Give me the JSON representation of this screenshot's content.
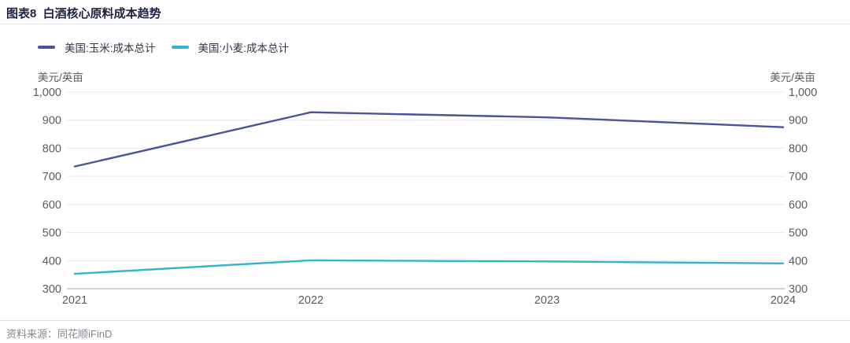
{
  "header": {
    "title": "图表8  白酒核心原料成本趋势"
  },
  "footer": {
    "source": "资料来源：同花顺iFinD"
  },
  "chart_data": {
    "type": "line",
    "title": "白酒核心原料成本趋势",
    "unit_left": "美元/英亩",
    "unit_right": "美元/英亩",
    "x": [
      "2021",
      "2022",
      "2023",
      "2024"
    ],
    "series": [
      {
        "id": "corn",
        "name": "美国:玉米:成本总计",
        "color": "#4a5299",
        "values": [
          735,
          928,
          910,
          875
        ]
      },
      {
        "id": "wheat",
        "name": "美国:小麦:成本总计",
        "color": "#33b3cf",
        "values": [
          353,
          401,
          397,
          390
        ]
      }
    ],
    "ylim": [
      300,
      1000
    ],
    "yticks": [
      {
        "label": "1,000",
        "value": 1000
      },
      {
        "label": "900",
        "value": 900
      },
      {
        "label": "800",
        "value": 800
      },
      {
        "label": "700",
        "value": 700
      },
      {
        "label": "600",
        "value": 600
      },
      {
        "label": "500",
        "value": 500
      },
      {
        "label": "400",
        "value": 400
      },
      {
        "label": "300",
        "value": 300
      }
    ],
    "grid": true,
    "dual_axis": true,
    "legend_position": "top-left"
  }
}
